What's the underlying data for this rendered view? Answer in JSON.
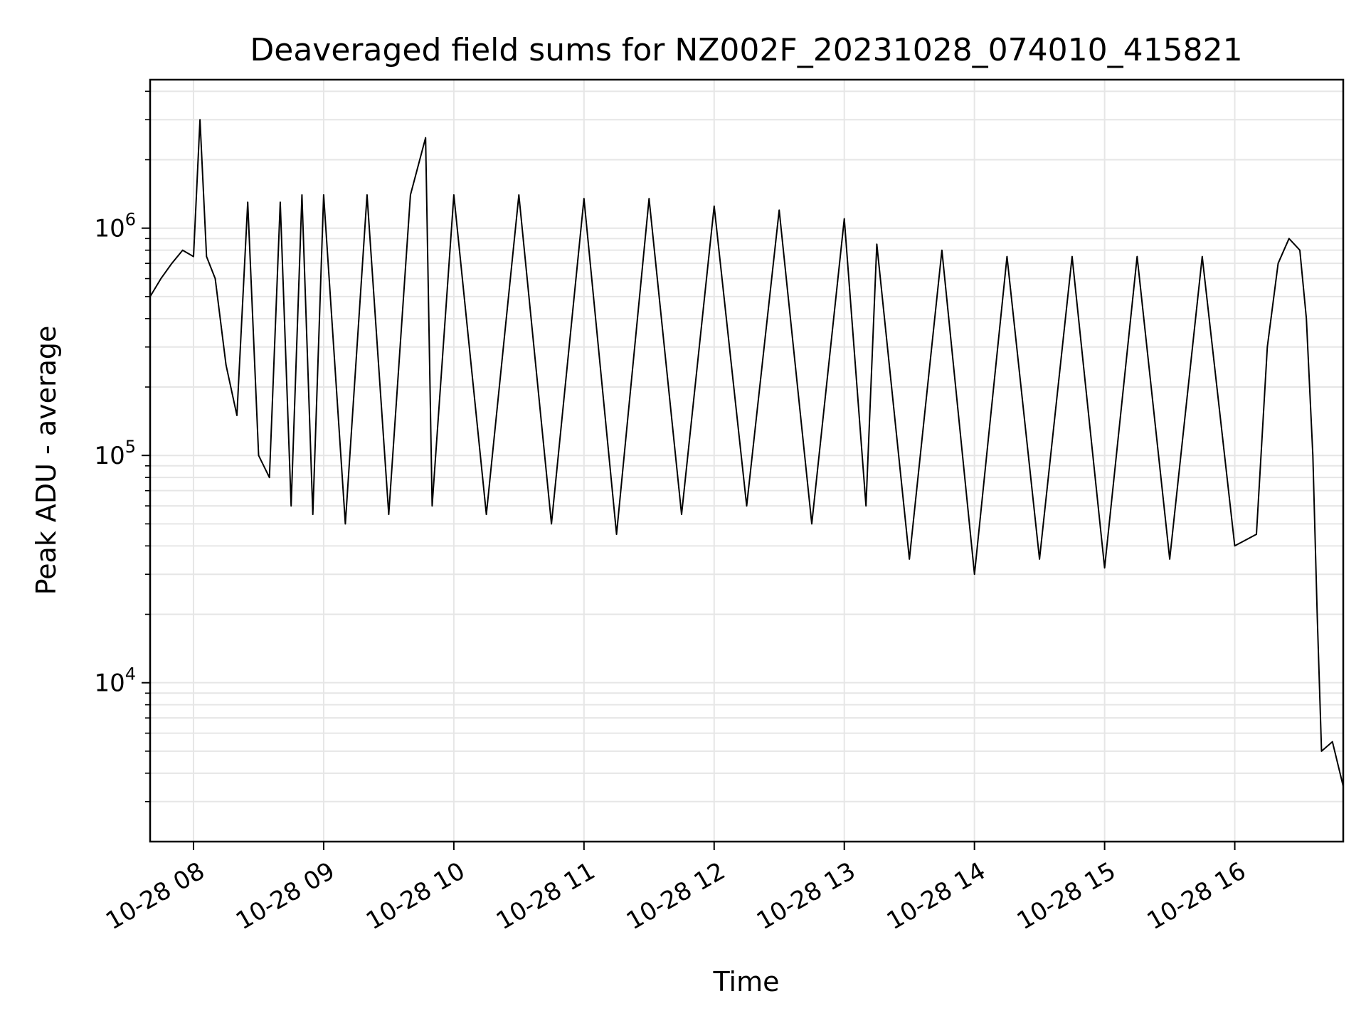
{
  "chart_data": {
    "type": "line",
    "title": "Deaveraged field sums for NZ002F_20231028_074010_415821",
    "xlabel": "Time",
    "ylabel": "Peak ADU - average",
    "x_scale": "time",
    "y_scale": "log",
    "xlim": [
      "2023-10-28 07:40",
      "2023-10-28 16:50"
    ],
    "ylim": [
      2000,
      4500000
    ],
    "grid": true,
    "line_color": "#000000",
    "x_ticks": [
      {
        "label": "10-28 08",
        "value": "2023-10-28 08:00"
      },
      {
        "label": "10-28 09",
        "value": "2023-10-28 09:00"
      },
      {
        "label": "10-28 10",
        "value": "2023-10-28 10:00"
      },
      {
        "label": "10-28 11",
        "value": "2023-10-28 11:00"
      },
      {
        "label": "10-28 12",
        "value": "2023-10-28 12:00"
      },
      {
        "label": "10-28 13",
        "value": "2023-10-28 13:00"
      },
      {
        "label": "10-28 14",
        "value": "2023-10-28 14:00"
      },
      {
        "label": "10-28 15",
        "value": "2023-10-28 15:00"
      },
      {
        "label": "10-28 16",
        "value": "2023-10-28 16:00"
      }
    ],
    "y_ticks": [
      {
        "base": "10",
        "exp": "4",
        "value": 10000
      },
      {
        "base": "10",
        "exp": "5",
        "value": 100000
      },
      {
        "base": "10",
        "exp": "6",
        "value": 1000000
      }
    ],
    "series": [
      {
        "points": [
          [
            "2023-10-28 07:40",
            500000
          ],
          [
            "2023-10-28 07:45",
            600000
          ],
          [
            "2023-10-28 07:50",
            700000
          ],
          [
            "2023-10-28 07:55",
            800000
          ],
          [
            "2023-10-28 08:00",
            750000
          ],
          [
            "2023-10-28 08:03",
            3000000
          ],
          [
            "2023-10-28 08:06",
            750000
          ],
          [
            "2023-10-28 08:10",
            600000
          ],
          [
            "2023-10-28 08:15",
            250000
          ],
          [
            "2023-10-28 08:20",
            150000
          ],
          [
            "2023-10-28 08:25",
            1300000
          ],
          [
            "2023-10-28 08:30",
            100000
          ],
          [
            "2023-10-28 08:35",
            80000
          ],
          [
            "2023-10-28 08:40",
            1300000
          ],
          [
            "2023-10-28 08:45",
            60000
          ],
          [
            "2023-10-28 08:50",
            1400000
          ],
          [
            "2023-10-28 08:55",
            55000
          ],
          [
            "2023-10-28 09:00",
            1400000
          ],
          [
            "2023-10-28 09:10",
            50000
          ],
          [
            "2023-10-28 09:20",
            1400000
          ],
          [
            "2023-10-28 09:30",
            55000
          ],
          [
            "2023-10-28 09:40",
            1400000
          ],
          [
            "2023-10-28 09:47",
            2500000
          ],
          [
            "2023-10-28 09:50",
            60000
          ],
          [
            "2023-10-28 10:00",
            1400000
          ],
          [
            "2023-10-28 10:15",
            55000
          ],
          [
            "2023-10-28 10:30",
            1400000
          ],
          [
            "2023-10-28 10:45",
            50000
          ],
          [
            "2023-10-28 11:00",
            1350000
          ],
          [
            "2023-10-28 11:15",
            45000
          ],
          [
            "2023-10-28 11:30",
            1350000
          ],
          [
            "2023-10-28 11:45",
            55000
          ],
          [
            "2023-10-28 12:00",
            1250000
          ],
          [
            "2023-10-28 12:15",
            60000
          ],
          [
            "2023-10-28 12:30",
            1200000
          ],
          [
            "2023-10-28 12:45",
            50000
          ],
          [
            "2023-10-28 13:00",
            1100000
          ],
          [
            "2023-10-28 13:10",
            60000
          ],
          [
            "2023-10-28 13:15",
            850000
          ],
          [
            "2023-10-28 13:30",
            35000
          ],
          [
            "2023-10-28 13:45",
            800000
          ],
          [
            "2023-10-28 14:00",
            30000
          ],
          [
            "2023-10-28 14:15",
            750000
          ],
          [
            "2023-10-28 14:30",
            35000
          ],
          [
            "2023-10-28 14:45",
            750000
          ],
          [
            "2023-10-28 15:00",
            32000
          ],
          [
            "2023-10-28 15:15",
            750000
          ],
          [
            "2023-10-28 15:30",
            35000
          ],
          [
            "2023-10-28 15:45",
            750000
          ],
          [
            "2023-10-28 16:00",
            40000
          ],
          [
            "2023-10-28 16:10",
            45000
          ],
          [
            "2023-10-28 16:15",
            300000
          ],
          [
            "2023-10-28 16:20",
            700000
          ],
          [
            "2023-10-28 16:25",
            900000
          ],
          [
            "2023-10-28 16:30",
            800000
          ],
          [
            "2023-10-28 16:33",
            400000
          ],
          [
            "2023-10-28 16:36",
            100000
          ],
          [
            "2023-10-28 16:38",
            20000
          ],
          [
            "2023-10-28 16:40",
            5000
          ],
          [
            "2023-10-28 16:45",
            5500
          ],
          [
            "2023-10-28 16:50",
            3500
          ]
        ]
      }
    ]
  }
}
